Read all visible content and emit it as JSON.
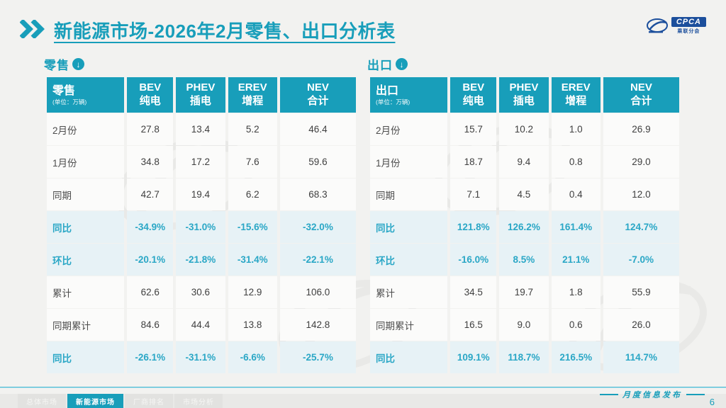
{
  "colors": {
    "accent": "#189eba",
    "header_bg": "#189eba",
    "highlight_row_bg": "#e7f2f6",
    "highlight_text": "#2aa7c6",
    "logo_navy": "#1c4f9c",
    "footer_line": "#4ab9d2"
  },
  "title": {
    "text": "新能源市场-2026年2月零售、出口分析表"
  },
  "logo": {
    "text": "CPCA",
    "subtext": "乘联分会"
  },
  "icons": {
    "down_arrow": "↓"
  },
  "tables": [
    {
      "section_label": "零售",
      "header": {
        "label": "零售",
        "unit": "(单位：万辆)",
        "columns": [
          {
            "en": "BEV",
            "zh": "纯电"
          },
          {
            "en": "PHEV",
            "zh": "插电"
          },
          {
            "en": "EREV",
            "zh": "增程"
          },
          {
            "en": "NEV",
            "zh": "合计"
          }
        ]
      },
      "rows": [
        {
          "label": "2月份",
          "values": [
            "27.8",
            "13.4",
            "5.2",
            "46.4"
          ],
          "highlight": false
        },
        {
          "label": "1月份",
          "values": [
            "34.8",
            "17.2",
            "7.6",
            "59.6"
          ],
          "highlight": false
        },
        {
          "label": "同期",
          "values": [
            "42.7",
            "19.4",
            "6.2",
            "68.3"
          ],
          "highlight": false
        },
        {
          "label": "同比",
          "values": [
            "-34.9%",
            "-31.0%",
            "-15.6%",
            "-32.0%"
          ],
          "highlight": true
        },
        {
          "label": "环比",
          "values": [
            "-20.1%",
            "-21.8%",
            "-31.4%",
            "-22.1%"
          ],
          "highlight": true
        },
        {
          "label": "累计",
          "values": [
            "62.6",
            "30.6",
            "12.9",
            "106.0"
          ],
          "highlight": false
        },
        {
          "label": "同期累计",
          "values": [
            "84.6",
            "44.4",
            "13.8",
            "142.8"
          ],
          "highlight": false
        },
        {
          "label": "同比",
          "values": [
            "-26.1%",
            "-31.1%",
            "-6.6%",
            "-25.7%"
          ],
          "highlight": true
        }
      ]
    },
    {
      "section_label": "出口",
      "header": {
        "label": "出口",
        "unit": "(单位：万辆)",
        "columns": [
          {
            "en": "BEV",
            "zh": "纯电"
          },
          {
            "en": "PHEV",
            "zh": "插电"
          },
          {
            "en": "EREV",
            "zh": "增程"
          },
          {
            "en": "NEV",
            "zh": "合计"
          }
        ]
      },
      "rows": [
        {
          "label": "2月份",
          "values": [
            "15.7",
            "10.2",
            "1.0",
            "26.9"
          ],
          "highlight": false
        },
        {
          "label": "1月份",
          "values": [
            "18.7",
            "9.4",
            "0.8",
            "29.0"
          ],
          "highlight": false
        },
        {
          "label": "同期",
          "values": [
            "7.1",
            "4.5",
            "0.4",
            "12.0"
          ],
          "highlight": false
        },
        {
          "label": "同比",
          "values": [
            "121.8%",
            "126.2%",
            "161.4%",
            "124.7%"
          ],
          "highlight": true
        },
        {
          "label": "环比",
          "values": [
            "-16.0%",
            "8.5%",
            "21.1%",
            "-7.0%"
          ],
          "highlight": true
        },
        {
          "label": "累计",
          "values": [
            "34.5",
            "19.7",
            "1.8",
            "55.9"
          ],
          "highlight": false
        },
        {
          "label": "同期累计",
          "values": [
            "16.5",
            "9.0",
            "0.6",
            "26.0"
          ],
          "highlight": false
        },
        {
          "label": "同比",
          "values": [
            "109.1%",
            "118.7%",
            "216.5%",
            "114.7%"
          ],
          "highlight": true
        }
      ]
    }
  ],
  "footer": {
    "tabs": [
      {
        "label": "总体市场",
        "active": false
      },
      {
        "label": "新能源市场",
        "active": true
      },
      {
        "label": "厂商排名",
        "active": false
      },
      {
        "label": "市场分析",
        "active": false
      }
    ],
    "caption": "月度信息发布",
    "page": "6"
  }
}
